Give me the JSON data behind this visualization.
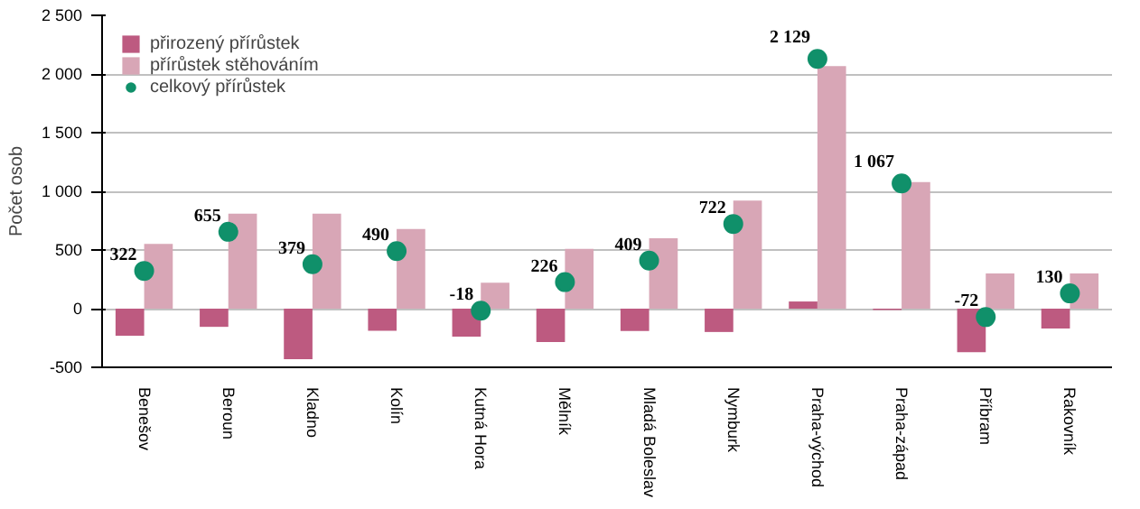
{
  "chart_data": {
    "type": "bar",
    "ylabel": "Počet osob",
    "categories": [
      "Benešov",
      "Beroun",
      "Kladno",
      "Kolín",
      "Kutná Hora",
      "Mělník",
      "Mladá Boleslav",
      "Nymburk",
      "Praha-východ",
      "Praha-západ",
      "Příbram",
      "Rakovník"
    ],
    "series": [
      {
        "name": "přirozený přírůstek",
        "color": "#bd5a80",
        "values": [
          -230,
          -155,
          -431,
          -189,
          -239,
          -284,
          -191,
          -199,
          61,
          -11,
          -372,
          -170
        ]
      },
      {
        "name": "přírůstek stěhováním",
        "color": "#d8a6b6",
        "values": [
          552,
          810,
          810,
          679,
          221,
          510,
          600,
          921,
          2068,
          1078,
          300,
          300
        ]
      },
      {
        "name": "celkový přírůstek",
        "type": "scatter",
        "color": "#10906a",
        "marker": "circle",
        "values": [
          322,
          655,
          379,
          490,
          -18,
          226,
          409,
          722,
          2129,
          1067,
          -72,
          130
        ],
        "value_labels": [
          "322",
          "655",
          "379",
          "490",
          "-18",
          "226",
          "409",
          "722",
          "2 129",
          "1 067",
          "-72",
          "130"
        ]
      }
    ],
    "ylim": [
      -500,
      2500
    ],
    "yticks": [
      {
        "value": -500,
        "label": "-500"
      },
      0,
      500,
      {
        "value": 1000,
        "label": "1 000"
      },
      {
        "value": 1500,
        "label": "1 500"
      },
      {
        "value": 2000,
        "label": "2 000"
      },
      {
        "value": 2500,
        "label": "2 500"
      }
    ],
    "grid": "y",
    "legend": "top left"
  }
}
